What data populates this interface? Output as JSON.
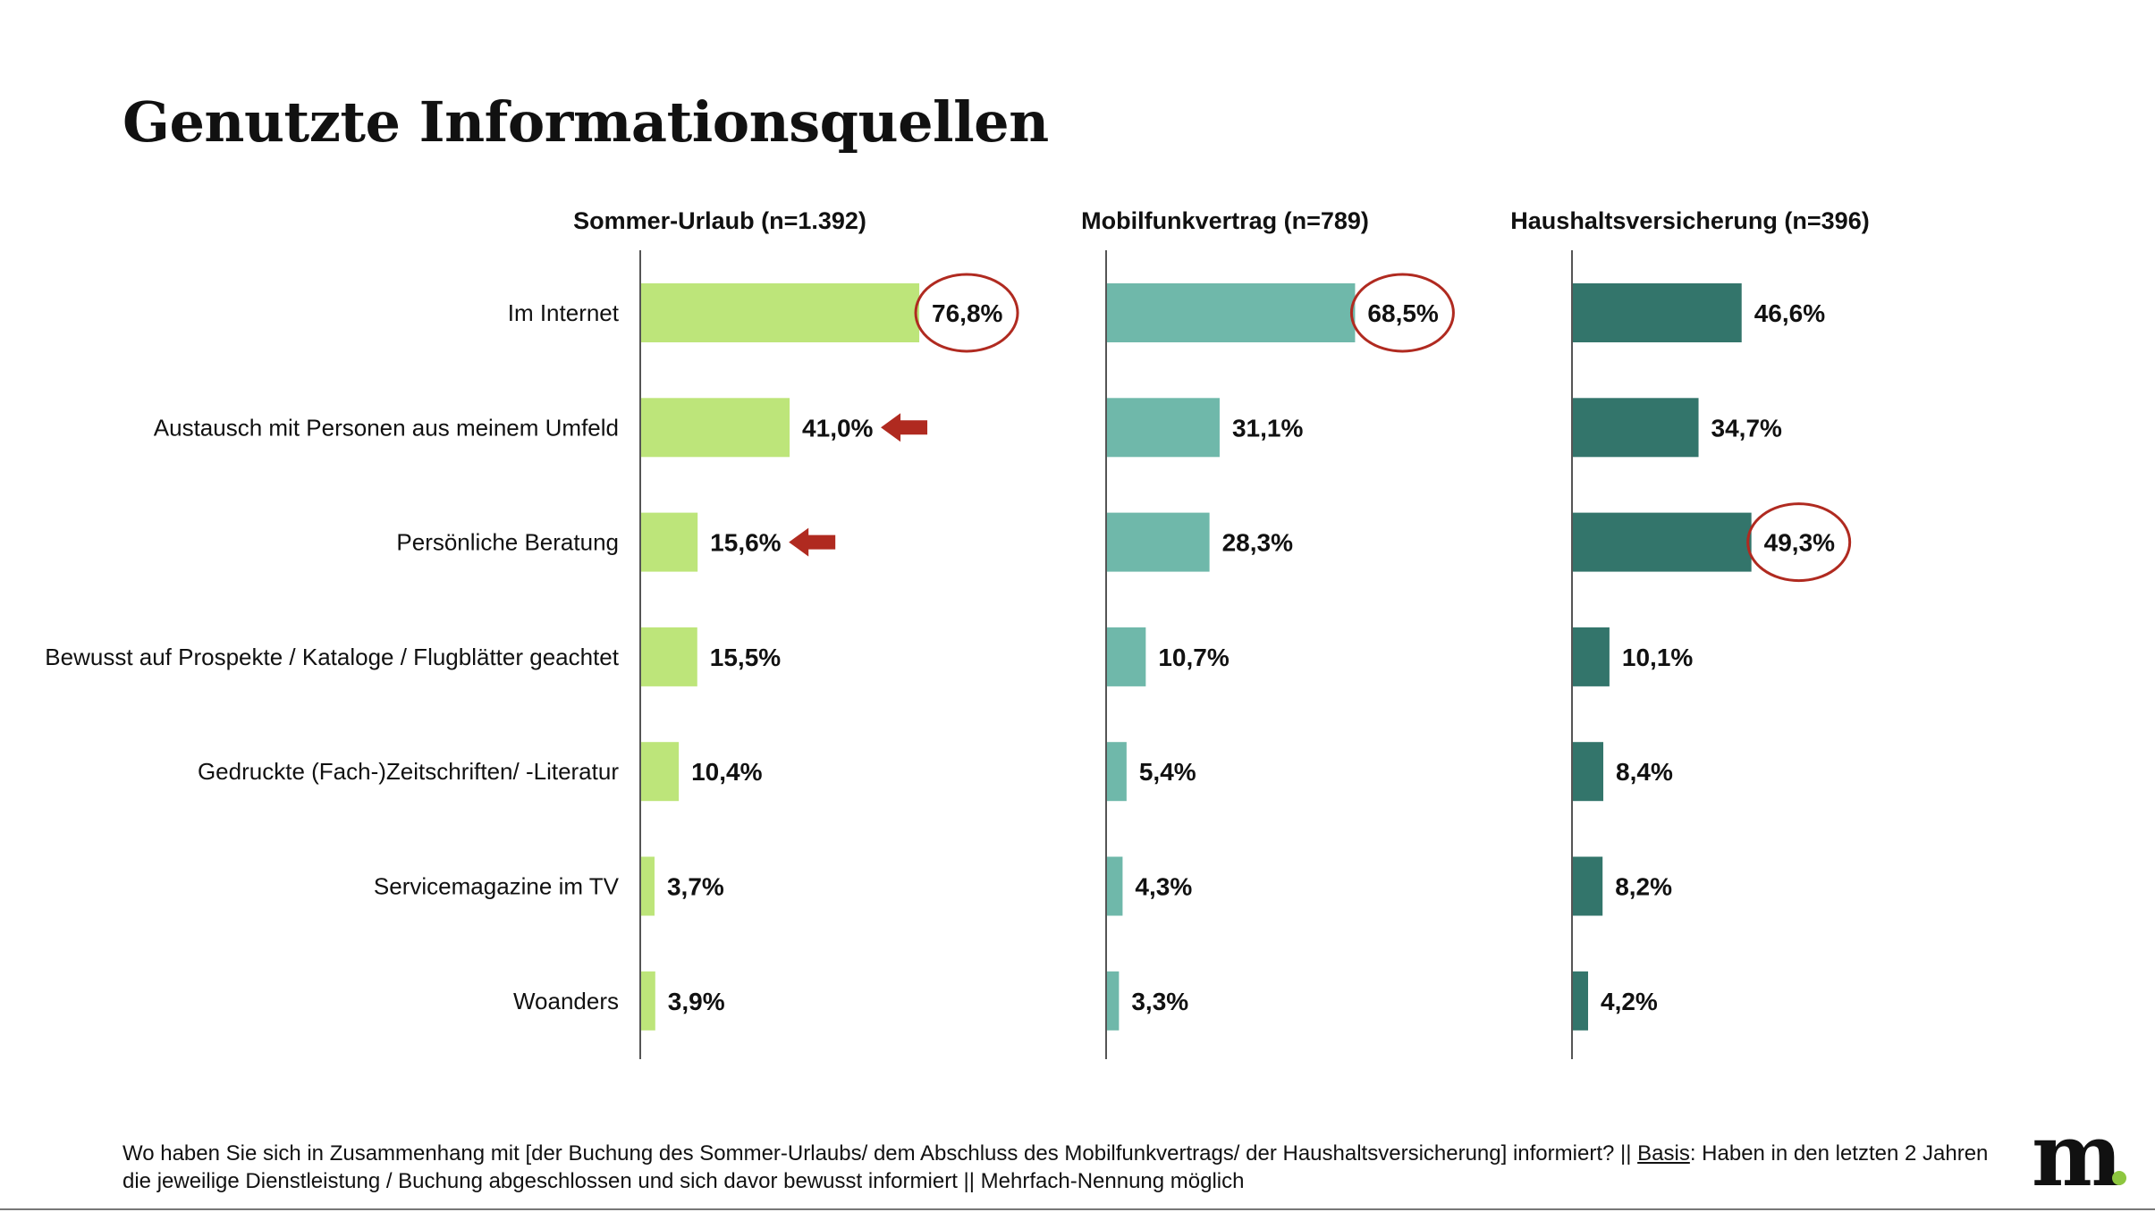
{
  "title": "Genutzte Informationsquellen",
  "chart_data": {
    "type": "bar",
    "orientation": "horizontal",
    "categories": [
      "Im Internet",
      "Austausch mit Personen aus meinem Umfeld",
      "Persönliche Beratung",
      "Bewusst auf Prospekte / Kataloge / Flugblätter geachtet",
      "Gedruckte (Fach-)Zeitschriften/ -Literatur",
      "Servicemagazine im TV",
      "Woanders"
    ],
    "value_labels_unit": "%",
    "xlim": [
      0,
      100
    ],
    "series": [
      {
        "name": "Sommer-Urlaub (n=1.392)",
        "color": "#bde57a",
        "values": [
          76.8,
          41.0,
          15.6,
          15.5,
          10.4,
          3.7,
          3.9
        ],
        "labels": [
          "76,8%",
          "41,0%",
          "15,6%",
          "15,5%",
          "10,4%",
          "3,7%",
          "3,9%"
        ],
        "circled": [
          0
        ],
        "arrows": [
          1,
          2
        ]
      },
      {
        "name": "Mobilfunkvertrag (n=789)",
        "color": "#6fb8aa",
        "values": [
          68.5,
          31.1,
          28.3,
          10.7,
          5.4,
          4.3,
          3.3
        ],
        "labels": [
          "68,5%",
          "31,1%",
          "28,3%",
          "10,7%",
          "5,4%",
          "4,3%",
          "3,3%"
        ],
        "circled": [
          0
        ],
        "arrows": []
      },
      {
        "name": "Haushaltsversicherung (n=396)",
        "color": "#33756b",
        "values": [
          46.6,
          34.7,
          49.3,
          10.1,
          8.4,
          8.2,
          4.2
        ],
        "labels": [
          "46,6%",
          "34,7%",
          "49,3%",
          "10,1%",
          "8,4%",
          "8,2%",
          "4,2%"
        ],
        "circled": [
          2
        ],
        "arrows": []
      }
    ],
    "highlight_color": "#b02a20"
  },
  "footnote": {
    "text_before": "Wo haben Sie sich in Zusammenhang mit [der Buchung des Sommer-Urlaubs/ dem Abschluss des Mobilfunkvertrags/ der Haushaltsversicherung] informiert? || ",
    "basis_label": "Basis",
    "text_after": ": Haben in den letzten 2 Jahren die jeweilige Dienstleistung / Buchung abgeschlossen und sich davor bewusst informiert || Mehrfach-Nennung möglich"
  },
  "logo": {
    "letter": "m",
    "dot_color": "#8dc63f"
  }
}
